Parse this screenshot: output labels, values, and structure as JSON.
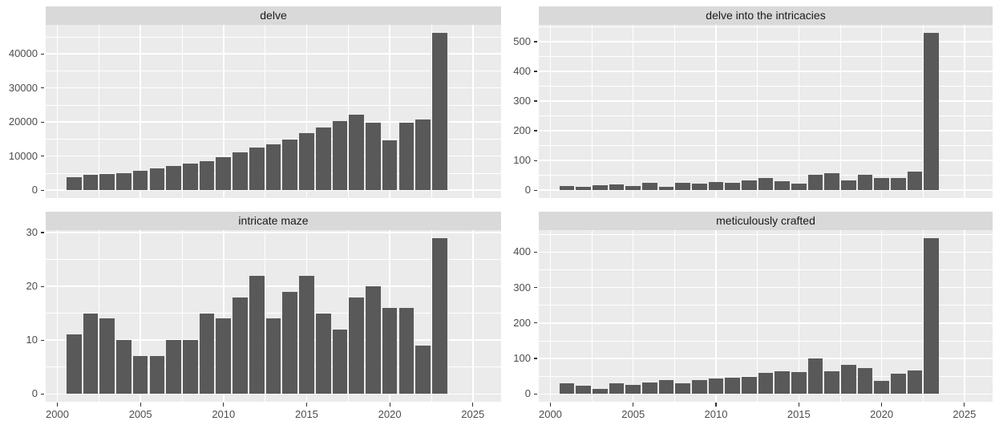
{
  "figure": {
    "kind": "faceted yearly bar chart (ggplot style)",
    "facets": [
      "delve",
      "delve into the intricacies",
      "intricate maze",
      "meticulously crafted"
    ]
  },
  "colors": {
    "page_background": "#ffffff",
    "panel_background": "#ebebeb",
    "strip_background": "#d9d9d9",
    "strip_text": "#1a1a1a",
    "bar_fill": "#595959",
    "gridline": "#ffffff",
    "axis_text": "#4d4d4d",
    "tick_mark": "#333333"
  },
  "chart_data": [
    {
      "type": "bar",
      "title": "delve",
      "x": [
        2001,
        2002,
        2003,
        2004,
        2005,
        2006,
        2007,
        2008,
        2009,
        2010,
        2011,
        2012,
        2013,
        2014,
        2015,
        2016,
        2017,
        2018,
        2019,
        2020,
        2021,
        2022,
        2023
      ],
      "values": [
        3700,
        4400,
        4700,
        5100,
        5700,
        6400,
        7000,
        7900,
        8600,
        9700,
        11000,
        12400,
        13400,
        14900,
        16800,
        18300,
        20300,
        22200,
        19900,
        14700,
        19900,
        20700,
        46200
      ],
      "y_ticks": [
        0,
        10000,
        20000,
        30000,
        40000
      ],
      "x_ticks": [
        2000,
        2005,
        2010,
        2015,
        2020,
        2025
      ],
      "show_x_labels": false,
      "xlim": [
        1999.3,
        2026.7
      ],
      "xlabel": "",
      "ylabel": ""
    },
    {
      "type": "bar",
      "title": "delve into the intricacies",
      "x": [
        2001,
        2002,
        2003,
        2004,
        2005,
        2006,
        2007,
        2008,
        2009,
        2010,
        2011,
        2012,
        2013,
        2014,
        2015,
        2016,
        2017,
        2018,
        2019,
        2020,
        2021,
        2022,
        2023
      ],
      "values": [
        13,
        12,
        18,
        20,
        13,
        26,
        10,
        26,
        22,
        27,
        25,
        33,
        42,
        31,
        22,
        53,
        56,
        33,
        53,
        42,
        42,
        62,
        530
      ],
      "y_ticks": [
        0,
        100,
        200,
        300,
        400,
        500
      ],
      "x_ticks": [
        2000,
        2005,
        2010,
        2015,
        2020,
        2025
      ],
      "show_x_labels": false,
      "xlim": [
        1999.3,
        2026.7
      ],
      "xlabel": "",
      "ylabel": ""
    },
    {
      "type": "bar",
      "title": "intricate maze",
      "x": [
        2001,
        2002,
        2003,
        2004,
        2005,
        2006,
        2007,
        2008,
        2009,
        2010,
        2011,
        2012,
        2013,
        2014,
        2015,
        2016,
        2017,
        2018,
        2019,
        2020,
        2021,
        2022,
        2023
      ],
      "values": [
        11,
        15,
        14,
        10,
        7,
        7,
        10,
        10,
        15,
        14,
        18,
        22,
        14,
        19,
        22,
        15,
        12,
        18,
        20,
        16,
        16,
        9,
        29
      ],
      "y_ticks": [
        0,
        10,
        20,
        30
      ],
      "x_ticks": [
        2000,
        2005,
        2010,
        2015,
        2020,
        2025
      ],
      "show_x_labels": true,
      "xlim": [
        1999.3,
        2026.7
      ],
      "xlabel": "",
      "ylabel": ""
    },
    {
      "type": "bar",
      "title": "meticulously crafted",
      "x": [
        2001,
        2002,
        2003,
        2004,
        2005,
        2006,
        2007,
        2008,
        2009,
        2010,
        2011,
        2012,
        2013,
        2014,
        2015,
        2016,
        2017,
        2018,
        2019,
        2020,
        2021,
        2022,
        2023
      ],
      "values": [
        29,
        23,
        15,
        30,
        25,
        32,
        38,
        29,
        38,
        43,
        46,
        47,
        60,
        64,
        61,
        100,
        65,
        83,
        72,
        37,
        58,
        66,
        440
      ],
      "y_ticks": [
        0,
        100,
        200,
        300,
        400
      ],
      "x_ticks": [
        2000,
        2005,
        2010,
        2015,
        2020,
        2025
      ],
      "show_x_labels": true,
      "xlim": [
        1999.3,
        2026.7
      ],
      "xlabel": "",
      "ylabel": ""
    }
  ]
}
